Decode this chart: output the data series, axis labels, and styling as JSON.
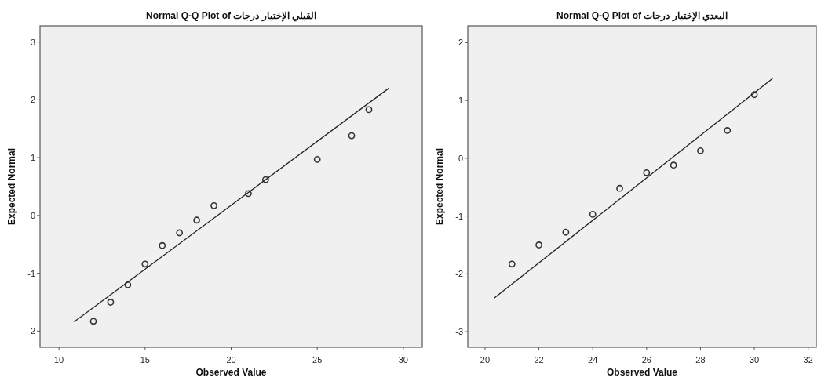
{
  "chart_data": [
    {
      "type": "scatter",
      "title": "Normal Q-Q Plot of القبلي الإختبار درجات",
      "xlabel": "Observed Value",
      "ylabel": "Expected Normal",
      "xlim": [
        8.9,
        31.1
      ],
      "ylim": [
        -2.28,
        3.28
      ],
      "xticks": [
        10,
        15,
        20,
        25,
        30
      ],
      "yticks": [
        -2,
        -1,
        0,
        1,
        2,
        3
      ],
      "series": [
        {
          "marker": "circle",
          "color": "#333333",
          "x": [
            12,
            13,
            14,
            15,
            16,
            17,
            18,
            19,
            21,
            22,
            25,
            27,
            28
          ],
          "values": [
            -1.83,
            -1.5,
            -1.2,
            -0.84,
            -0.52,
            -0.3,
            -0.08,
            0.17,
            0.38,
            0.62,
            0.97,
            1.38,
            1.83
          ]
        },
        {
          "type": "line",
          "color": "#222222",
          "x": [
            10.88,
            29.15
          ],
          "values": [
            -1.84,
            2.2
          ]
        }
      ]
    },
    {
      "type": "scatter",
      "title": "Normal Q-Q Plot of البعدي الإختبار درجات",
      "xlabel": "Observed Value",
      "ylabel": "Expected Normal",
      "xlim": [
        19.36,
        32.3
      ],
      "ylim": [
        -3.27,
        2.29
      ],
      "xticks": [
        20,
        22,
        24,
        26,
        28,
        30,
        32
      ],
      "yticks": [
        -3,
        -2,
        -1,
        0,
        1,
        2
      ],
      "series": [
        {
          "marker": "circle",
          "color": "#333333",
          "x": [
            21,
            22,
            23,
            24,
            25,
            26,
            27,
            28,
            29,
            30
          ],
          "values": [
            -1.83,
            -1.5,
            -1.28,
            -0.97,
            -0.52,
            -0.25,
            -0.12,
            0.13,
            0.48,
            1.1
          ]
        },
        {
          "type": "line",
          "color": "#222222",
          "x": [
            20.34,
            30.68
          ],
          "values": [
            -2.42,
            1.38
          ]
        }
      ]
    }
  ]
}
